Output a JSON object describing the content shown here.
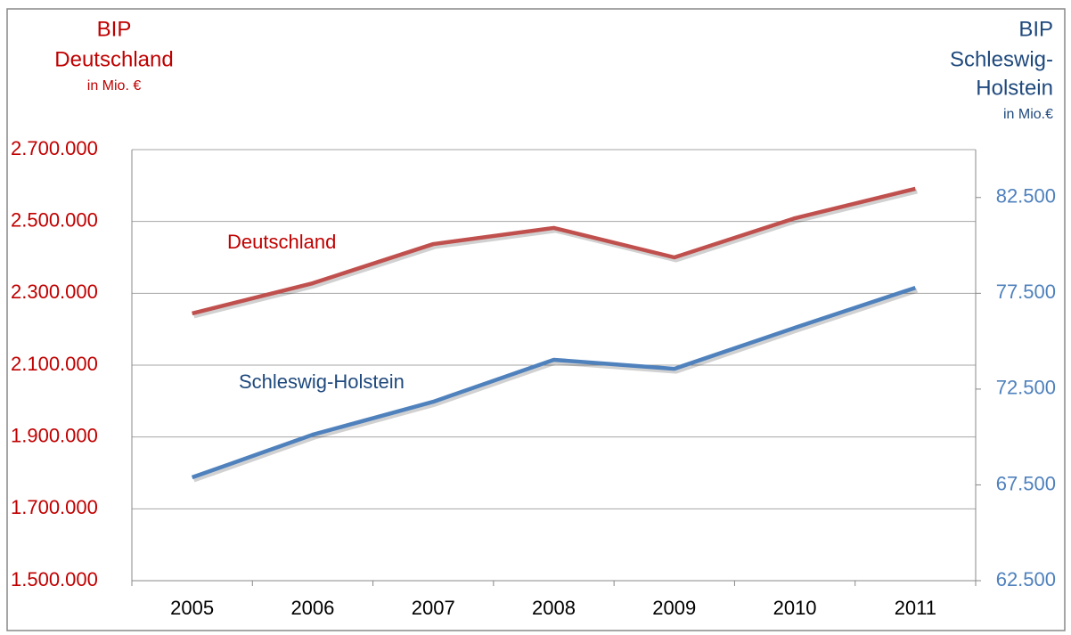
{
  "chart_data": {
    "type": "line",
    "y_label": [
      "BIP",
      "Deutschland",
      "in Mio. €"
    ],
    "y2_label": [
      "BIP",
      "Schleswig-",
      "Holstein",
      "in Mio.€"
    ],
    "categories": [
      "2005",
      "2006",
      "2007",
      "2008",
      "2009",
      "2010",
      "2011"
    ],
    "series": [
      {
        "name": "Deutschland",
        "color": "#c0504d",
        "axis": "y",
        "values": [
          2244000,
          2328000,
          2437000,
          2482000,
          2400000,
          2509000,
          2591000
        ]
      },
      {
        "name": "Schleswig-Holstein",
        "color": "#4f81bd",
        "axis": "y2",
        "values": [
          67890,
          70120,
          71840,
          74030,
          73560,
          75700,
          77790
        ]
      }
    ],
    "ylim": [
      1500000,
      2700000
    ],
    "yticks": [
      {
        "value": 1500000,
        "label": "1.500.000"
      },
      {
        "value": 1700000,
        "label": "1.700.000"
      },
      {
        "value": 1900000,
        "label": "1.900.000"
      },
      {
        "value": 2100000,
        "label": "2.100.000"
      },
      {
        "value": 2300000,
        "label": "2.300.000"
      },
      {
        "value": 2500000,
        "label": "2.500.000"
      },
      {
        "value": 2700000,
        "label": "2.700.000"
      }
    ],
    "y2lim": [
      62500,
      85000
    ],
    "y2ticks": [
      {
        "value": 62500,
        "label": "62.500"
      },
      {
        "value": 67500,
        "label": "67.500"
      },
      {
        "value": 72500,
        "label": "72.500"
      },
      {
        "value": 77500,
        "label": "77.500"
      },
      {
        "value": 82500,
        "label": "82.500"
      }
    ],
    "grid": true
  }
}
